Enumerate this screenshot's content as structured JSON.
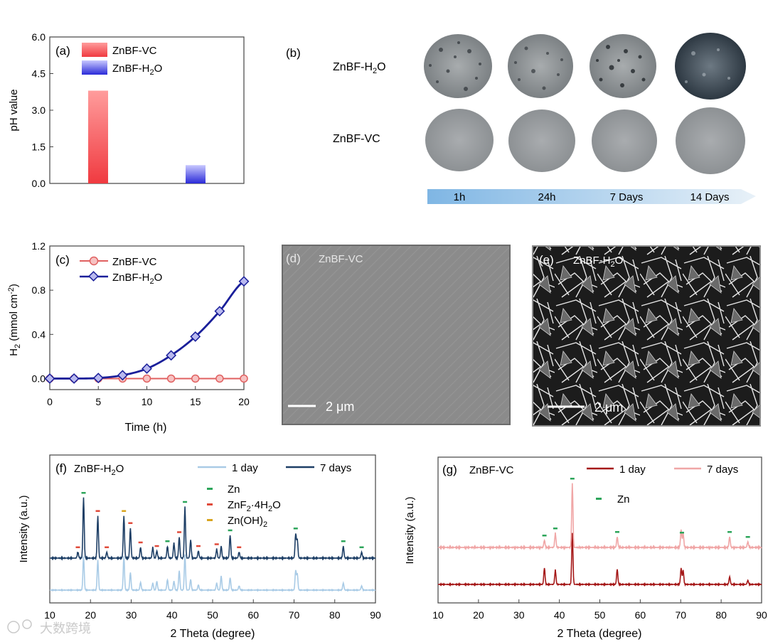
{
  "colors": {
    "vc_red": "#f0444a",
    "h2o_blue": "#2b2fd6",
    "line_vc": "#e06060",
    "line_h2o": "#1a1f9a",
    "xrd_light_blue": "#a9cbe6",
    "xrd_dark_blue": "#1e3f66",
    "xrd_dark_red": "#a51818",
    "xrd_light_red": "#f0a6a6",
    "zn_marker": "#2ca55a",
    "znf2_marker": "#e04a3a",
    "znoh_marker": "#d8a41e"
  },
  "panel_a": {
    "label": "(a)",
    "legend": [
      "ZnBF-VC",
      "ZnBF-H2O"
    ],
    "chart_data": {
      "type": "bar",
      "categories": [
        "ZnBF-VC",
        "ZnBF-H2O"
      ],
      "values": [
        3.8,
        0.75
      ],
      "ylabel": "pH value",
      "ylim": [
        0,
        6
      ],
      "yticks": [
        "0.0",
        "1.5",
        "3.0",
        "4.5",
        "6.0"
      ]
    }
  },
  "panel_b": {
    "label": "(b)",
    "rows": [
      "ZnBF-H2O",
      "ZnBF-VC"
    ],
    "timepoints": [
      "1h",
      "24h",
      "7 Days",
      "14 Days"
    ]
  },
  "panel_c": {
    "label": "(c)",
    "legend": [
      "ZnBF-VC",
      "ZnBF-H2O"
    ],
    "chart_data": {
      "type": "line",
      "x": [
        0,
        2.5,
        5,
        7.5,
        10,
        12.5,
        15,
        17.5,
        20
      ],
      "series": [
        {
          "name": "ZnBF-VC",
          "values": [
            0,
            0,
            0,
            0,
            0,
            0,
            0,
            0,
            0
          ]
        },
        {
          "name": "ZnBF-H2O",
          "values": [
            0,
            0,
            0.005,
            0.03,
            0.09,
            0.21,
            0.38,
            0.61,
            0.88
          ]
        }
      ],
      "xlabel": "Time (h)",
      "ylabel": "H2 (mmol cm-2)",
      "xlim": [
        0,
        20
      ],
      "ylim": [
        -0.1,
        1.2
      ],
      "xticks": [
        "0",
        "5",
        "10",
        "15",
        "20"
      ],
      "yticks": [
        "0.0",
        "0.4",
        "0.8",
        "1.2"
      ]
    }
  },
  "panel_d": {
    "label": "(d)",
    "title": "ZnBF-VC",
    "scalebar": "2 μm"
  },
  "panel_e": {
    "label": "(e)",
    "title": "ZnBF-H2O",
    "scalebar": "2 μm"
  },
  "panel_f": {
    "label": "(f)",
    "title": "ZnBF-H2O",
    "legend_lines": [
      "1 day",
      "7 days"
    ],
    "legend_markers": [
      "Zn",
      "ZnF2·4H2O",
      "Zn(OH)2"
    ],
    "chart_data": {
      "type": "line",
      "xlabel": "2 Theta (degree)",
      "ylabel": "Intensity (a.u.)",
      "xlim": [
        10,
        90
      ],
      "xticks": [
        "10",
        "20",
        "30",
        "40",
        "50",
        "60",
        "70",
        "80",
        "90"
      ],
      "series": [
        {
          "name": "1 day",
          "peaks": [
            [
              18.3,
              0.95
            ],
            [
              21.8,
              0.85
            ],
            [
              28.2,
              0.95
            ],
            [
              29.8,
              0.5
            ],
            [
              32.3,
              0.22
            ],
            [
              35.3,
              0.2
            ],
            [
              36.3,
              0.25
            ],
            [
              38.9,
              0.3
            ],
            [
              40.5,
              0.25
            ],
            [
              41.8,
              0.55
            ],
            [
              43.2,
              1.0
            ],
            [
              44.6,
              0.3
            ],
            [
              46.5,
              0.15
            ],
            [
              51.0,
              0.2
            ],
            [
              52.1,
              0.4
            ],
            [
              54.3,
              0.35
            ],
            [
              56.5,
              0.12
            ],
            [
              70.4,
              0.55
            ],
            [
              70.8,
              0.45
            ],
            [
              82.1,
              0.2
            ],
            [
              86.6,
              0.12
            ]
          ]
        },
        {
          "name": "7 days",
          "peaks": [
            [
              16.9,
              0.1
            ],
            [
              18.3,
              1.0
            ],
            [
              21.8,
              0.7
            ],
            [
              24.0,
              0.1
            ],
            [
              28.2,
              0.7
            ],
            [
              29.8,
              0.5
            ],
            [
              32.3,
              0.18
            ],
            [
              35.3,
              0.18
            ],
            [
              36.3,
              0.12
            ],
            [
              38.9,
              0.2
            ],
            [
              40.5,
              0.25
            ],
            [
              41.8,
              0.35
            ],
            [
              43.2,
              0.85
            ],
            [
              44.6,
              0.3
            ],
            [
              46.5,
              0.12
            ],
            [
              51.0,
              0.15
            ],
            [
              52.1,
              0.2
            ],
            [
              54.3,
              0.38
            ],
            [
              56.5,
              0.1
            ],
            [
              70.4,
              0.4
            ],
            [
              70.8,
              0.3
            ],
            [
              82.1,
              0.2
            ],
            [
              86.6,
              0.1
            ]
          ]
        }
      ]
    }
  },
  "panel_g": {
    "label": "(g)",
    "title": "ZnBF-VC",
    "legend_lines": [
      "1 day",
      "7 days"
    ],
    "legend_markers": [
      "Zn"
    ],
    "chart_data": {
      "type": "line",
      "xlabel": "2 Theta (degree)",
      "ylabel": "Intensity (a.u.)",
      "xlim": [
        10,
        90
      ],
      "xticks": [
        "10",
        "20",
        "30",
        "40",
        "50",
        "60",
        "70",
        "80",
        "90"
      ],
      "series": [
        {
          "name": "1 day",
          "peaks": [
            [
              36.3,
              0.32
            ],
            [
              39.0,
              0.28
            ],
            [
              43.2,
              1.0
            ],
            [
              54.3,
              0.3
            ],
            [
              70.1,
              0.32
            ],
            [
              70.6,
              0.28
            ],
            [
              82.1,
              0.15
            ],
            [
              86.6,
              0.08
            ]
          ]
        },
        {
          "name": "7 days",
          "peaks": [
            [
              36.3,
              0.1
            ],
            [
              39.0,
              0.2
            ],
            [
              43.2,
              0.9
            ],
            [
              54.3,
              0.15
            ],
            [
              70.1,
              0.25
            ],
            [
              70.6,
              0.2
            ],
            [
              82.1,
              0.15
            ],
            [
              86.6,
              0.08
            ]
          ]
        }
      ]
    }
  },
  "watermark": "大数跨境"
}
